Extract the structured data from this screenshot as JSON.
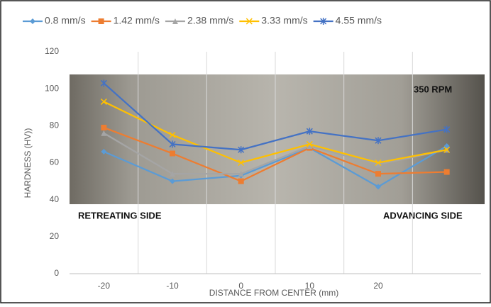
{
  "chart_data": {
    "type": "line",
    "y_label": "HARDNESS (HV))",
    "x_label": "DISTANCE FROM CENTER (mm)",
    "annotations": [
      "350 RPM",
      "RETREATING SIDE",
      "ADVANCING SIDE"
    ],
    "categories": [
      "-20",
      "-10",
      "0",
      "10",
      "20",
      null
    ],
    "series": [
      {
        "name": "0.8 mm/s",
        "color": "#5b9bd5",
        "marker": "diamond",
        "values": [
          66,
          50,
          53,
          68,
          47,
          69
        ]
      },
      {
        "name": "1.42 mm/s",
        "color": "#ed7d31",
        "marker": "square",
        "values": [
          79,
          65,
          50,
          68,
          54,
          55
        ]
      },
      {
        "name": "2.38 mm/s",
        "color": "#a5a5a5",
        "marker": "triangle",
        "values": [
          76,
          54,
          54,
          69,
          59,
          67
        ]
      },
      {
        "name": "3.33 mm/s",
        "color": "#ffc000",
        "marker": "x",
        "values": [
          93,
          75,
          60,
          70,
          60,
          67
        ]
      },
      {
        "name": "4.55 mm/s",
        "color": "#4472c4",
        "marker": "star",
        "values": [
          103,
          70,
          67,
          77,
          72,
          78
        ]
      }
    ],
    "ylim": [
      0,
      120
    ],
    "yticks": [
      0,
      20,
      40,
      60,
      80,
      100,
      120
    ],
    "grid": "x",
    "legend": "top"
  }
}
